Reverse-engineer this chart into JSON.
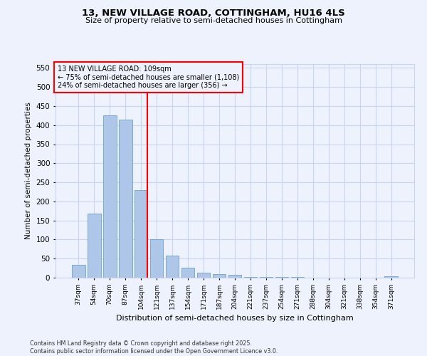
{
  "title1": "13, NEW VILLAGE ROAD, COTTINGHAM, HU16 4LS",
  "title2": "Size of property relative to semi-detached houses in Cottingham",
  "xlabel": "Distribution of semi-detached houses by size in Cottingham",
  "ylabel": "Number of semi-detached properties",
  "bar_labels": [
    "37sqm",
    "54sqm",
    "70sqm",
    "87sqm",
    "104sqm",
    "121sqm",
    "137sqm",
    "154sqm",
    "171sqm",
    "187sqm",
    "204sqm",
    "221sqm",
    "237sqm",
    "254sqm",
    "271sqm",
    "288sqm",
    "304sqm",
    "321sqm",
    "338sqm",
    "354sqm",
    "371sqm"
  ],
  "bar_values": [
    33,
    168,
    425,
    415,
    230,
    101,
    58,
    26,
    13,
    9,
    8,
    2,
    2,
    1,
    1,
    0,
    0,
    0,
    0,
    0,
    4
  ],
  "bar_color": "#aec6e8",
  "bar_edge_color": "#5a96c8",
  "vline_x_index": 4,
  "vline_color": "red",
  "annotation_title": "13 NEW VILLAGE ROAD: 109sqm",
  "annotation_line1": "← 75% of semi-detached houses are smaller (1,108)",
  "annotation_line2": "24% of semi-detached houses are larger (356) →",
  "annotation_box_color": "red",
  "ylim": [
    0,
    560
  ],
  "yticks": [
    0,
    50,
    100,
    150,
    200,
    250,
    300,
    350,
    400,
    450,
    500,
    550
  ],
  "footnote1": "Contains HM Land Registry data © Crown copyright and database right 2025.",
  "footnote2": "Contains public sector information licensed under the Open Government Licence v3.0.",
  "bg_color": "#eef2fc",
  "grid_color": "#c8d4f0"
}
